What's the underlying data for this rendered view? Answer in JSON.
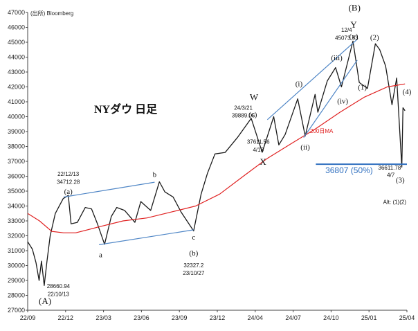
{
  "chart_data": {
    "type": "line",
    "source_note": "(出所) Bloomberg",
    "title": "NYダウ 日足",
    "x_ticks": [
      "22/09",
      "22/12",
      "23/03",
      "23/06",
      "23/09",
      "23/12",
      "24/04",
      "24/07",
      "24/10",
      "25/01",
      "25/04"
    ],
    "y_ticks": [
      27000,
      28000,
      29000,
      30000,
      31000,
      32000,
      33000,
      34000,
      35000,
      36000,
      37000,
      38000,
      39000,
      40000,
      41000,
      42000,
      43000,
      44000,
      45000,
      46000,
      47000
    ],
    "ylim": [
      27000,
      47000
    ],
    "x_range": [
      "2022-09-01",
      "2025-04-20"
    ],
    "series": [
      {
        "name": "NYダウ",
        "color": "#1a1a1a",
        "points": [
          [
            "2022-09-01",
            31600
          ],
          [
            "2022-09-13",
            31100
          ],
          [
            "2022-09-22",
            30200
          ],
          [
            "2022-09-30",
            29000
          ],
          [
            "2022-10-06",
            30300
          ],
          [
            "2022-10-13",
            28660.94
          ],
          [
            "2022-10-20",
            30300
          ],
          [
            "2022-10-28",
            32000
          ],
          [
            "2022-11-10",
            33500
          ],
          [
            "2022-11-30",
            34500
          ],
          [
            "2022-12-13",
            34712.28
          ],
          [
            "2022-12-20",
            32800
          ],
          [
            "2023-01-05",
            32900
          ],
          [
            "2023-01-25",
            33900
          ],
          [
            "2023-02-10",
            33800
          ],
          [
            "2023-02-25",
            32800
          ],
          [
            "2023-03-15",
            31430
          ],
          [
            "2023-04-01",
            33300
          ],
          [
            "2023-04-15",
            33900
          ],
          [
            "2023-05-05",
            33700
          ],
          [
            "2023-05-31",
            32900
          ],
          [
            "2023-06-15",
            34300
          ],
          [
            "2023-07-10",
            33700
          ],
          [
            "2023-08-01",
            35630
          ],
          [
            "2023-08-15",
            34950
          ],
          [
            "2023-09-05",
            34600
          ],
          [
            "2023-09-25",
            33600
          ],
          [
            "2023-10-27",
            32327.2
          ],
          [
            "2023-11-15",
            34800
          ],
          [
            "2023-12-01",
            36200
          ],
          [
            "2023-12-20",
            37500
          ],
          [
            "2024-01-15",
            37600
          ],
          [
            "2024-02-15",
            38600
          ],
          [
            "2024-03-21",
            39889.05
          ],
          [
            "2024-04-18",
            37611.56
          ],
          [
            "2024-05-17",
            40000
          ],
          [
            "2024-05-30",
            38100
          ],
          [
            "2024-06-15",
            38800
          ],
          [
            "2024-07-17",
            41200
          ],
          [
            "2024-08-05",
            38700
          ],
          [
            "2024-08-30",
            41500
          ],
          [
            "2024-09-06",
            40300
          ],
          [
            "2024-09-30",
            42400
          ],
          [
            "2024-10-21",
            43300
          ],
          [
            "2024-11-05",
            42000
          ],
          [
            "2024-12-04",
            45073.63
          ],
          [
            "2024-12-20",
            42300
          ],
          [
            "2025-01-10",
            41900
          ],
          [
            "2025-01-30",
            44900
          ],
          [
            "2025-02-10",
            44500
          ],
          [
            "2025-02-25",
            43400
          ],
          [
            "2025-03-13",
            40800
          ],
          [
            "2025-03-25",
            42600
          ],
          [
            "2025-04-07",
            36611.78
          ],
          [
            "2025-04-10",
            40600
          ],
          [
            "2025-04-15",
            40400
          ]
        ]
      },
      {
        "name": "200日MA",
        "color": "#e02020",
        "points": [
          [
            "2022-09-01",
            33500
          ],
          [
            "2022-10-01",
            33000
          ],
          [
            "2022-11-01",
            32300
          ],
          [
            "2022-12-01",
            32200
          ],
          [
            "2023-01-01",
            32200
          ],
          [
            "2023-03-01",
            32600
          ],
          [
            "2023-05-01",
            33000
          ],
          [
            "2023-07-01",
            33200
          ],
          [
            "2023-09-01",
            33600
          ],
          [
            "2023-11-01",
            34000
          ],
          [
            "2024-01-01",
            34800
          ],
          [
            "2024-03-01",
            36000
          ],
          [
            "2024-05-01",
            37200
          ],
          [
            "2024-07-01",
            38200
          ],
          [
            "2024-09-01",
            39200
          ],
          [
            "2024-11-01",
            40300
          ],
          [
            "2025-01-01",
            41300
          ],
          [
            "2025-03-01",
            42000
          ],
          [
            "2025-04-15",
            42200
          ]
        ]
      }
    ],
    "trend_lines": [
      {
        "from": [
          "2022-12-01",
          34600
        ],
        "to": [
          "2023-07-20",
          35600
        ],
        "color": "#4f86c6"
      },
      {
        "from": [
          "2023-03-01",
          31400
        ],
        "to": [
          "2023-10-27",
          32400
        ],
        "color": "#4f86c6"
      },
      {
        "from": [
          "2024-05-01",
          39800
        ],
        "to": [
          "2024-12-15",
          45200
        ],
        "color": "#4f86c6"
      },
      {
        "from": [
          "2024-08-01",
          38600
        ],
        "to": [
          "2024-12-15",
          43800
        ],
        "color": "#4f86c6"
      }
    ],
    "support_line": {
      "value": 36807,
      "from": "2024-09-01",
      "to": "2025-04-20",
      "label": "36807 (50%)",
      "color": "#2f6fbf"
    },
    "ma_label": "200日MA",
    "annotations": [
      {
        "text": "22/12/13",
        "x": "2022-12-13",
        "y": 36020,
        "size": 8
      },
      {
        "text": "34712.28",
        "x": "2022-12-13",
        "y": 35480,
        "size": 8
      },
      {
        "text": "(a)",
        "x": "2022-12-13",
        "y": 34820,
        "size": 11
      },
      {
        "text": "b",
        "x": "2023-07-20",
        "y": 35950,
        "size": 11
      },
      {
        "text": "a",
        "x": "2023-03-05",
        "y": 30550,
        "size": 11
      },
      {
        "text": "c",
        "x": "2023-10-27",
        "y": 31750,
        "size": 11
      },
      {
        "text": "(b)",
        "x": "2023-10-27",
        "y": 30680,
        "size": 11
      },
      {
        "text": "32327.2",
        "x": "2023-10-27",
        "y": 29880,
        "size": 8
      },
      {
        "text": "23/10/27",
        "x": "2023-10-27",
        "y": 29380,
        "size": 8
      },
      {
        "text": "28660.94",
        "x": "2022-11-18",
        "y": 28490,
        "size": 8
      },
      {
        "text": "22/10/13",
        "x": "2022-11-18",
        "y": 27960,
        "size": 8
      },
      {
        "text": "(A)",
        "x": "2022-10-15",
        "y": 27420,
        "size": 13
      },
      {
        "text": "W",
        "x": "2024-03-28",
        "y": 41120,
        "size": 13
      },
      {
        "text": "24/3/21",
        "x": "2024-03-01",
        "y": 40460,
        "size": 8
      },
      {
        "text": "(c)",
        "x": "2024-03-25",
        "y": 39980,
        "size": 11
      },
      {
        "text": "39889.05",
        "x": "2024-03-01",
        "y": 39960,
        "size": 8
      },
      {
        "text": "37611.56",
        "x": "2024-04-08",
        "y": 38180,
        "size": 8
      },
      {
        "text": "4/18",
        "x": "2024-04-08",
        "y": 37640,
        "size": 8
      },
      {
        "text": "X",
        "x": "2024-04-20",
        "y": 36760,
        "size": 13
      },
      {
        "text": "(i)",
        "x": "2024-07-20",
        "y": 42050,
        "size": 11
      },
      {
        "text": "(ii)",
        "x": "2024-08-05",
        "y": 37780,
        "size": 11
      },
      {
        "text": "(iii)",
        "x": "2024-10-24",
        "y": 43780,
        "size": 11
      },
      {
        "text": "(iv)",
        "x": "2024-11-08",
        "y": 40880,
        "size": 11
      },
      {
        "text": "(v)",
        "x": "2024-12-06",
        "y": 45230,
        "size": 11
      },
      {
        "text": "12/4",
        "x": "2024-11-18",
        "y": 45690,
        "size": 8
      },
      {
        "text": "45073.63",
        "x": "2024-11-18",
        "y": 45170,
        "size": 8
      },
      {
        "text": "Y",
        "x": "2024-12-06",
        "y": 45970,
        "size": 13
      },
      {
        "text": "(B)",
        "x": "2024-12-08",
        "y": 47120,
        "size": 13
      },
      {
        "text": "(2)",
        "x": "2025-01-28",
        "y": 45170,
        "size": 11
      },
      {
        "text": "(1)",
        "x": "2024-12-28",
        "y": 41820,
        "size": 11
      },
      {
        "text": "(4)",
        "x": "2025-04-20",
        "y": 41520,
        "size": 11
      },
      {
        "text": "36611.78",
        "x": "2025-03-07",
        "y": 36450,
        "size": 8
      },
      {
        "text": "4/7",
        "x": "2025-03-10",
        "y": 35950,
        "size": 8
      },
      {
        "text": "(3)",
        "x": "2025-04-03",
        "y": 35570,
        "size": 11
      },
      {
        "text": "Alt: (1)(2)",
        "x": "2025-03-20",
        "y": 34150,
        "size": 9
      }
    ]
  }
}
